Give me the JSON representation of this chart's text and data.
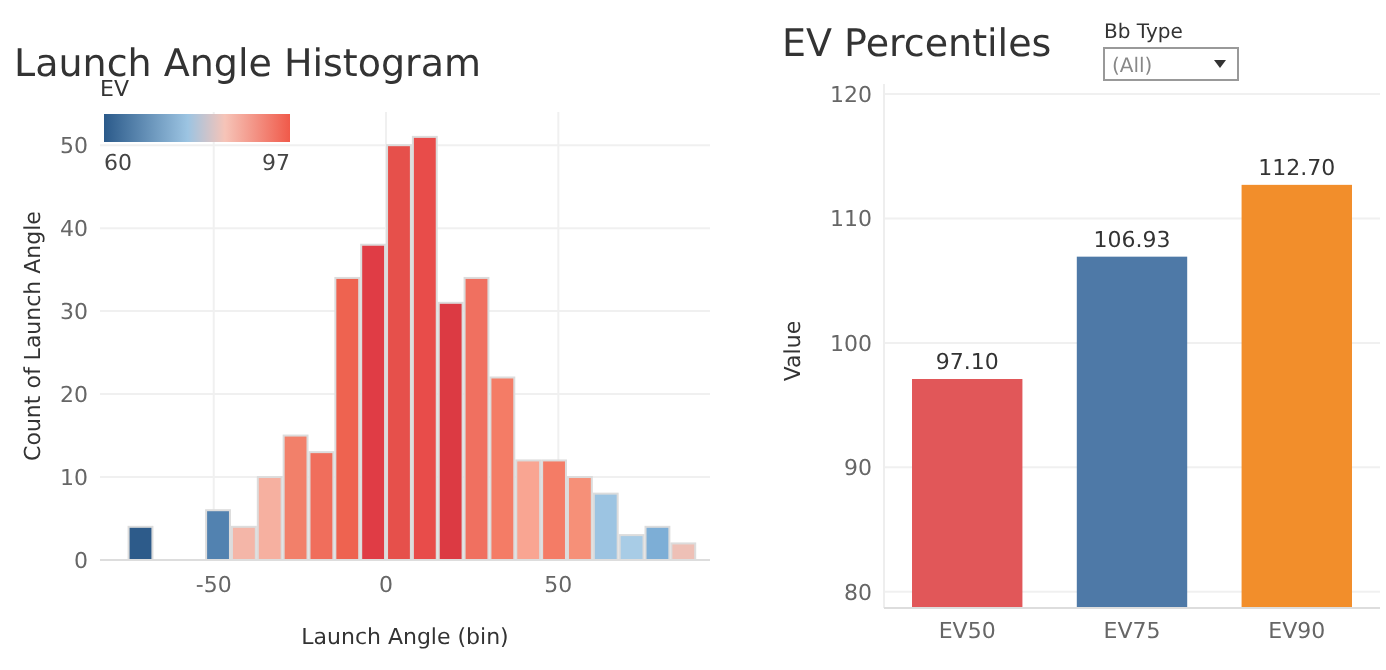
{
  "chart_data": [
    {
      "type": "histogram",
      "title": "Launch Angle Histogram",
      "xlabel": "Launch Angle (bin)",
      "ylabel": "Count of Launch Angle",
      "clabel": "EV",
      "bins": [
        -75,
        -67.5,
        -60,
        -52.5,
        -45,
        -37.5,
        -30,
        -22.5,
        -15,
        -7.5,
        0,
        7.5,
        15,
        22.5,
        30,
        37.5,
        45,
        52.5,
        60,
        67.5,
        75,
        82.5,
        90
      ],
      "values": [
        4,
        0,
        0,
        6,
        4,
        10,
        15,
        13,
        34,
        38,
        50,
        51,
        31,
        34,
        22,
        12,
        12,
        10,
        8,
        3,
        4,
        2
      ],
      "colors": [
        "#2d5b8a",
        null,
        null,
        "#5282b0",
        "#f4b6a8",
        "#f6b0a0",
        "#f2806a",
        "#f06e5c",
        "#ee6350",
        "#e03c45",
        "#e6504b",
        "#e84c4a",
        "#dc3a43",
        "#f07060",
        "#f47c66",
        "#f9a592",
        "#f47c66",
        "#f69078",
        "#9cc4e2",
        "#a8cce6",
        "#7daed6",
        "#eec0b6"
      ],
      "xlim": [
        -83,
        94
      ],
      "xticks": [
        -50,
        0,
        50
      ],
      "ylim": [
        0,
        54
      ],
      "yticks": [
        0,
        10,
        20,
        30,
        40,
        50
      ],
      "annotations": [
        "60",
        "97"
      ],
      "grid": true
    },
    {
      "type": "bar",
      "title": "EV Percentiles",
      "ylabel": "Value",
      "categories": [
        "EV50",
        "EV75",
        "EV90"
      ],
      "values": [
        97.1,
        106.93,
        112.7
      ],
      "colors": [
        "#e15759",
        "#4e79a7",
        "#f28e2b"
      ],
      "value_labels": [
        "97.10",
        "106.93",
        "112.70"
      ],
      "ylim": [
        78.7,
        120
      ],
      "yticks": [
        80,
        90,
        100,
        110,
        120
      ],
      "grid": "y",
      "annotations": [
        "Bb Type",
        "(All)"
      ]
    }
  ]
}
